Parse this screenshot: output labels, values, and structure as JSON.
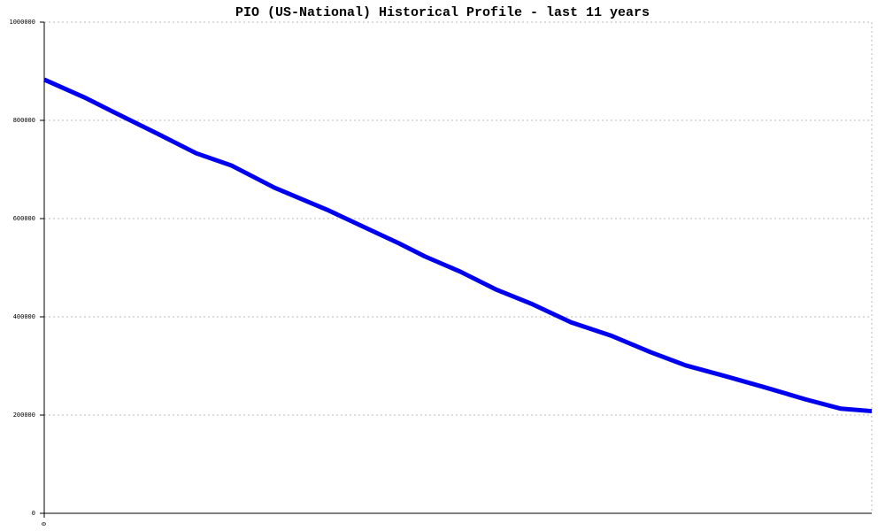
{
  "chart_data": {
    "type": "line",
    "title": "PIO (US-National) Historical Profile - last 11 years",
    "x": [
      0,
      0.53,
      1,
      1.53,
      2.02,
      2.49,
      3.06,
      3.76,
      4.29,
      4.71,
      5.06,
      5.53,
      6,
      6.47,
      7,
      7.53,
      8.06,
      8.53,
      9.06,
      9.59,
      10.12,
      10.59,
      11
    ],
    "xlim": [
      0,
      11
    ],
    "xticks": [
      0
    ],
    "series": [
      {
        "name": "PIO",
        "color": "#0000ee",
        "values": [
          883000,
          847000,
          811000,
          771000,
          733000,
          708000,
          663000,
          618000,
          580000,
          550000,
          523000,
          492000,
          456000,
          427000,
          389000,
          362000,
          328000,
          301000,
          279000,
          256000,
          232000,
          213000,
          208000
        ]
      }
    ],
    "ylim": [
      0,
      1000000
    ],
    "yticks": [
      0,
      200000,
      400000,
      600000,
      800000,
      1000000
    ],
    "grid": true
  }
}
